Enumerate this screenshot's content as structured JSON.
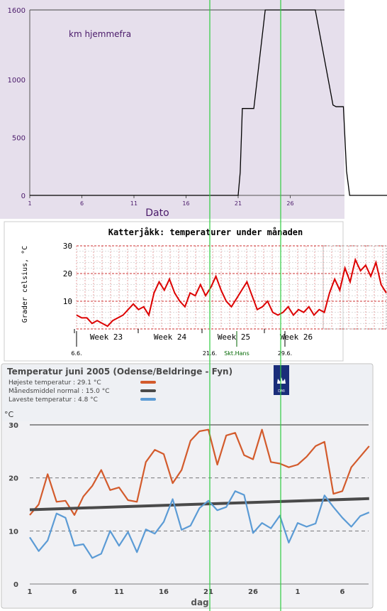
{
  "chart_data": [
    {
      "type": "line",
      "title": "",
      "annotation": "km hjemmefra",
      "xlabel": "Dato",
      "ylabel": "",
      "xlim": [
        1,
        36
      ],
      "ylim": [
        0,
        1600
      ],
      "xticks": [
        "1",
        "6",
        "11",
        "16",
        "21",
        "26"
      ],
      "yticks": [
        "0",
        "500",
        "1000",
        "1600"
      ],
      "colors": {
        "background": "#e6dfec",
        "line": "#000000",
        "text": "#4a1a6a"
      },
      "series": [
        {
          "name": "",
          "x": [
            1,
            20.9,
            21,
            21.2,
            21.4,
            22.5,
            23.6,
            28.4,
            30.1,
            30.4,
            31.1,
            31.4,
            31.7,
            40
          ],
          "y": [
            0,
            0,
            0,
            200,
            750,
            750,
            1600,
            1600,
            780,
            765,
            765,
            210,
            0,
            0
          ]
        }
      ]
    },
    {
      "type": "line",
      "title": "Katterjåkk: temperaturer under månaden",
      "xlabel": "",
      "ylabel": "Grader celsius, °C",
      "ylim": [
        0,
        30
      ],
      "yticks": [
        "10",
        "20",
        "30"
      ],
      "week_labels": [
        "Week 23",
        "Week 24",
        "Week 25",
        "Week 26"
      ],
      "date_markers": [
        "6.6.",
        "21.6.",
        "Skt.Hans",
        "29.6."
      ],
      "grid": true,
      "colors": {
        "line": "#dd0000",
        "grid_major": "#cc3333",
        "grid_minor": "#999999"
      },
      "series": [
        {
          "name": "",
          "x": [
            0,
            0.5,
            1,
            1.5,
            2,
            2.5,
            3,
            3.5,
            4,
            4.5,
            5,
            5.5,
            6,
            6.5,
            7,
            7.5,
            8,
            8.5,
            9,
            9.5,
            10,
            10.5,
            11,
            11.5,
            12,
            12.5,
            13,
            13.5,
            14,
            14.5,
            15,
            15.5,
            16,
            16.5,
            17,
            17.5,
            18,
            18.5,
            19,
            19.5,
            20,
            20.5,
            21,
            21.5,
            22,
            22.5,
            23,
            23.5,
            24,
            24.5,
            25,
            25.5,
            26,
            26.5,
            27,
            27.5,
            28,
            28.5,
            29,
            29.5,
            30
          ],
          "y": [
            5,
            4,
            4,
            2,
            3,
            2,
            1,
            3,
            4,
            5,
            7,
            9,
            7,
            8,
            5,
            13,
            17,
            14,
            18,
            13,
            10,
            8,
            13,
            12,
            16,
            12,
            15,
            19,
            14,
            10,
            8,
            11,
            14,
            17,
            12,
            7,
            8,
            10,
            6,
            5,
            6,
            8,
            5,
            7,
            6,
            8,
            5,
            7,
            6,
            13,
            18,
            14,
            22,
            17,
            25,
            21,
            23,
            19,
            24,
            16,
            13
          ]
        }
      ]
    },
    {
      "type": "line",
      "title": "Temperatur juni 2005  (Odense/Beldringe - Fyn)",
      "xlabel": "dag",
      "ylabel": "°C",
      "ylim": [
        0,
        30
      ],
      "yticks": [
        "0",
        "10",
        "20",
        "30"
      ],
      "xticks": [
        "1",
        "6",
        "11",
        "16",
        "21",
        "26",
        "1",
        "6"
      ],
      "legend_position": "top-left",
      "grid": true,
      "logo_text": "DMI",
      "series": [
        {
          "name": "Højeste temperatur : 29.1 °C",
          "color": "#d35b2c",
          "x": [
            1,
            2,
            3,
            4,
            5,
            6,
            7,
            8,
            9,
            10,
            11,
            12,
            13,
            14,
            15,
            16,
            17,
            18,
            19,
            20,
            21,
            22,
            23,
            24,
            25,
            26,
            27,
            28,
            29,
            30,
            31,
            32,
            33,
            34,
            35,
            36,
            37,
            38,
            39
          ],
          "y": [
            13,
            15,
            20.7,
            15.5,
            15.7,
            13,
            16.5,
            18.5,
            21.5,
            17.7,
            18.2,
            15.8,
            15.5,
            23,
            25.3,
            24.5,
            19,
            21.5,
            27,
            28.8,
            29.1,
            22.5,
            28,
            28.5,
            24.3,
            23.5,
            29.1,
            23,
            22.7,
            22,
            22.5,
            24,
            26,
            26.8,
            17,
            17.5,
            22,
            24,
            26
          ]
        },
        {
          "name": "Månedsmiddel normal : 15.0 °C",
          "color": "#4a4a4a",
          "x": [
            1,
            39
          ],
          "y": [
            14,
            16.1
          ]
        },
        {
          "name": "Laveste temperatur : 4.8 °C",
          "color": "#5b9bd5",
          "x": [
            1,
            2,
            3,
            4,
            5,
            6,
            7,
            8,
            9,
            10,
            11,
            12,
            13,
            14,
            15,
            16,
            17,
            18,
            19,
            20,
            21,
            22,
            23,
            24,
            25,
            26,
            27,
            28,
            29,
            30,
            31,
            32,
            33,
            34,
            35,
            36,
            37,
            38,
            39
          ],
          "y": [
            8.8,
            6.2,
            8.2,
            13.3,
            12.5,
            7.2,
            7.5,
            4.9,
            5.7,
            10,
            7.2,
            9.8,
            6,
            10.3,
            9.5,
            11.7,
            16,
            10.2,
            11,
            14.3,
            15.7,
            13.9,
            14.5,
            17.5,
            16.8,
            9.6,
            11.5,
            10.5,
            12.9,
            7.8,
            11.5,
            10.8,
            11.4,
            16.7,
            14.5,
            12.5,
            10.8,
            12.8,
            13.5
          ]
        }
      ]
    }
  ],
  "overlay": {
    "line_color": "#2ecc40"
  }
}
